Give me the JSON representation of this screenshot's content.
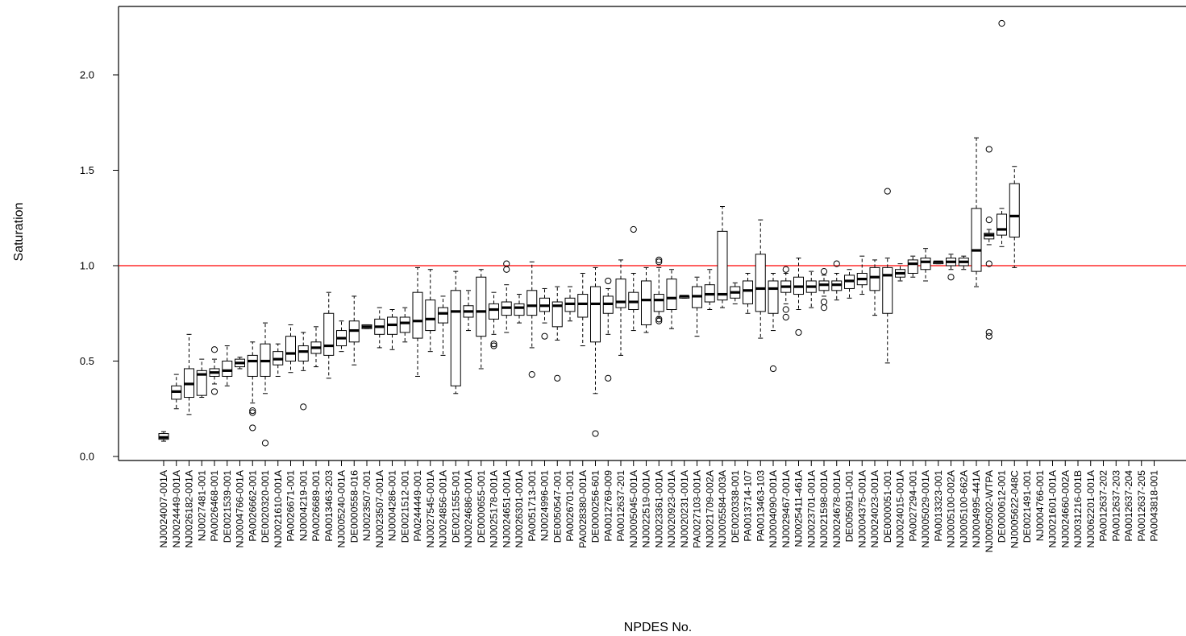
{
  "chart_data": {
    "type": "boxplot",
    "title": "",
    "xlabel": "NPDES No.",
    "ylabel": "Saturation",
    "ylim": [
      0,
      2.3
    ],
    "yticks": [
      0.0,
      0.5,
      1.0,
      1.5,
      2.0
    ],
    "ytick_labels": [
      "0.0",
      "0.5",
      "1.0",
      "1.5",
      "2.0"
    ],
    "reference_line": {
      "y": 1.0,
      "color": "#ff0000"
    },
    "box_color": "#000000",
    "categories": [
      "NJ0024007-001A",
      "NJ0024449-001A",
      "NJ0026182-001A",
      "NJ0027481-001",
      "PA0026468-001",
      "DE0021539-001",
      "NJ0004766-001A",
      "PA0026662-001",
      "DE0020320-001",
      "NJ0021610-001A",
      "PA0026671-001",
      "NJ0004219-001",
      "PA0026689-001",
      "PA0013463-203",
      "NJ0005240-001A",
      "DE0000558-016",
      "NJ0023507-001",
      "NJ0023507-001A",
      "NJ0004286-001",
      "DE0021512-001",
      "PA0244449-001",
      "NJ0027545-001A",
      "NJ0024856-001A",
      "DE0021555-001",
      "NJ0024686-001A",
      "DE0000655-001",
      "NJ0025178-001A",
      "NJ0024651-001A",
      "NJ0026301-001A",
      "PA0051713-001",
      "NJ0024996-001",
      "DE0050547-001",
      "PA0026701-001",
      "PA0028380-001A",
      "DE0000256-601",
      "PA0012769-009",
      "PA0012637-201",
      "NJ0005045-001A",
      "NJ0022519-001A",
      "NJ0023361-001A",
      "NJ0020923-001A",
      "NJ0020231-001A",
      "PA0027103-001A",
      "NJ0021709-002A",
      "NJ0005584-003A",
      "DE0020338-001",
      "PA0013714-107",
      "PA0013463-103",
      "NJ0004090-001A",
      "NJ0029467-001A",
      "NJ0025411-461A",
      "NJ0023701-001A",
      "NJ0021598-001A",
      "NJ0024678-001A",
      "DE0050911-001",
      "NJ0004375-001A",
      "NJ0024023-001A",
      "DE0000051-001",
      "NJ0024015-001A",
      "PA0027294-001",
      "NJ0005029-001A",
      "PA0013323-001",
      "NJ0005100-002A",
      "NJ0005100-662A",
      "NJ0004995-441A",
      "NJ0005002-WTPA",
      "DE0000612-001",
      "NJ0005622-048C",
      "DE0021491-001",
      "NJ0004766-001",
      "NJ0021601-001A",
      "NJ0024660-002A",
      "NJ0031216-001B",
      "NJ0062201-001A",
      "PA0012637-202",
      "PA0012637-203",
      "PA0012637-204",
      "PA0012637-205",
      "PA0043818-001"
    ],
    "boxes": [
      {
        "q1": 0.09,
        "median": 0.1,
        "q3": 0.12,
        "whisker_low": 0.08,
        "whisker_high": 0.13,
        "outliers": []
      },
      {
        "q1": 0.3,
        "median": 0.34,
        "q3": 0.37,
        "whisker_low": 0.25,
        "whisker_high": 0.43,
        "outliers": []
      },
      {
        "q1": 0.31,
        "median": 0.38,
        "q3": 0.46,
        "whisker_low": 0.22,
        "whisker_high": 0.64,
        "outliers": []
      },
      {
        "q1": 0.32,
        "median": 0.43,
        "q3": 0.45,
        "whisker_low": 0.31,
        "whisker_high": 0.51,
        "outliers": []
      },
      {
        "q1": 0.42,
        "median": 0.44,
        "q3": 0.46,
        "whisker_low": 0.38,
        "whisker_high": 0.51,
        "outliers": [
          0.34,
          0.56
        ]
      },
      {
        "q1": 0.42,
        "median": 0.45,
        "q3": 0.5,
        "whisker_low": 0.37,
        "whisker_high": 0.58,
        "outliers": []
      },
      {
        "q1": 0.47,
        "median": 0.49,
        "q3": 0.51,
        "whisker_low": 0.46,
        "whisker_high": 0.52,
        "outliers": []
      },
      {
        "q1": 0.42,
        "median": 0.5,
        "q3": 0.53,
        "whisker_low": 0.28,
        "whisker_high": 0.6,
        "outliers": [
          0.15,
          0.23,
          0.24
        ]
      },
      {
        "q1": 0.42,
        "median": 0.5,
        "q3": 0.59,
        "whisker_low": 0.33,
        "whisker_high": 0.7,
        "outliers": [
          0.07
        ]
      },
      {
        "q1": 0.48,
        "median": 0.51,
        "q3": 0.55,
        "whisker_low": 0.42,
        "whisker_high": 0.59,
        "outliers": []
      },
      {
        "q1": 0.5,
        "median": 0.54,
        "q3": 0.63,
        "whisker_low": 0.44,
        "whisker_high": 0.69,
        "outliers": []
      },
      {
        "q1": 0.5,
        "median": 0.55,
        "q3": 0.58,
        "whisker_low": 0.45,
        "whisker_high": 0.65,
        "outliers": [
          0.26
        ]
      },
      {
        "q1": 0.54,
        "median": 0.57,
        "q3": 0.6,
        "whisker_low": 0.47,
        "whisker_high": 0.68,
        "outliers": []
      },
      {
        "q1": 0.53,
        "median": 0.58,
        "q3": 0.75,
        "whisker_low": 0.41,
        "whisker_high": 0.86,
        "outliers": []
      },
      {
        "q1": 0.58,
        "median": 0.62,
        "q3": 0.66,
        "whisker_low": 0.55,
        "whisker_high": 0.71,
        "outliers": []
      },
      {
        "q1": 0.6,
        "median": 0.66,
        "q3": 0.71,
        "whisker_low": 0.48,
        "whisker_high": 0.84,
        "outliers": []
      },
      {
        "q1": 0.67,
        "median": 0.68,
        "q3": 0.69,
        "whisker_low": 0.67,
        "whisker_high": 0.69,
        "outliers": []
      },
      {
        "q1": 0.64,
        "median": 0.68,
        "q3": 0.72,
        "whisker_low": 0.57,
        "whisker_high": 0.78,
        "outliers": []
      },
      {
        "q1": 0.64,
        "median": 0.69,
        "q3": 0.73,
        "whisker_low": 0.56,
        "whisker_high": 0.77,
        "outliers": []
      },
      {
        "q1": 0.65,
        "median": 0.7,
        "q3": 0.73,
        "whisker_low": 0.6,
        "whisker_high": 0.78,
        "outliers": []
      },
      {
        "q1": 0.62,
        "median": 0.71,
        "q3": 0.86,
        "whisker_low": 0.42,
        "whisker_high": 0.99,
        "outliers": []
      },
      {
        "q1": 0.66,
        "median": 0.72,
        "q3": 0.82,
        "whisker_low": 0.55,
        "whisker_high": 0.98,
        "outliers": []
      },
      {
        "q1": 0.7,
        "median": 0.75,
        "q3": 0.78,
        "whisker_low": 0.53,
        "whisker_high": 0.84,
        "outliers": []
      },
      {
        "q1": 0.37,
        "median": 0.76,
        "q3": 0.87,
        "whisker_low": 0.33,
        "whisker_high": 0.97,
        "outliers": []
      },
      {
        "q1": 0.73,
        "median": 0.76,
        "q3": 0.79,
        "whisker_low": 0.66,
        "whisker_high": 0.87,
        "outliers": []
      },
      {
        "q1": 0.63,
        "median": 0.76,
        "q3": 0.94,
        "whisker_low": 0.46,
        "whisker_high": 0.98,
        "outliers": []
      },
      {
        "q1": 0.72,
        "median": 0.77,
        "q3": 0.8,
        "whisker_low": 0.64,
        "whisker_high": 0.86,
        "outliers": [
          0.58,
          0.59
        ]
      },
      {
        "q1": 0.74,
        "median": 0.78,
        "q3": 0.81,
        "whisker_low": 0.65,
        "whisker_high": 0.9,
        "outliers": [
          0.98,
          1.01
        ]
      },
      {
        "q1": 0.74,
        "median": 0.78,
        "q3": 0.8,
        "whisker_low": 0.7,
        "whisker_high": 0.85,
        "outliers": []
      },
      {
        "q1": 0.74,
        "median": 0.79,
        "q3": 0.87,
        "whisker_low": 0.57,
        "whisker_high": 1.02,
        "outliers": [
          0.43
        ]
      },
      {
        "q1": 0.76,
        "median": 0.79,
        "q3": 0.83,
        "whisker_low": 0.7,
        "whisker_high": 0.88,
        "outliers": [
          0.63
        ]
      },
      {
        "q1": 0.68,
        "median": 0.79,
        "q3": 0.81,
        "whisker_low": 0.61,
        "whisker_high": 0.89,
        "outliers": [
          0.41
        ]
      },
      {
        "q1": 0.76,
        "median": 0.8,
        "q3": 0.83,
        "whisker_low": 0.71,
        "whisker_high": 0.89,
        "outliers": []
      },
      {
        "q1": 0.73,
        "median": 0.8,
        "q3": 0.85,
        "whisker_low": 0.58,
        "whisker_high": 0.96,
        "outliers": []
      },
      {
        "q1": 0.6,
        "median": 0.8,
        "q3": 0.89,
        "whisker_low": 0.33,
        "whisker_high": 0.99,
        "outliers": [
          0.12
        ]
      },
      {
        "q1": 0.75,
        "median": 0.8,
        "q3": 0.84,
        "whisker_low": 0.64,
        "whisker_high": 0.88,
        "outliers": [
          0.41,
          0.92
        ]
      },
      {
        "q1": 0.78,
        "median": 0.81,
        "q3": 0.93,
        "whisker_low": 0.53,
        "whisker_high": 1.03,
        "outliers": []
      },
      {
        "q1": 0.77,
        "median": 0.81,
        "q3": 0.86,
        "whisker_low": 0.66,
        "whisker_high": 0.96,
        "outliers": [
          1.19
        ]
      },
      {
        "q1": 0.69,
        "median": 0.82,
        "q3": 0.92,
        "whisker_low": 0.65,
        "whisker_high": 0.99,
        "outliers": []
      },
      {
        "q1": 0.76,
        "median": 0.82,
        "q3": 0.85,
        "whisker_low": 0.73,
        "whisker_high": 0.99,
        "outliers": [
          0.71,
          0.72,
          1.02,
          1.03
        ]
      },
      {
        "q1": 0.77,
        "median": 0.83,
        "q3": 0.93,
        "whisker_low": 0.67,
        "whisker_high": 0.98,
        "outliers": []
      },
      {
        "q1": 0.83,
        "median": 0.84,
        "q3": 0.84,
        "whisker_low": 0.83,
        "whisker_high": 0.84,
        "outliers": []
      },
      {
        "q1": 0.78,
        "median": 0.84,
        "q3": 0.89,
        "whisker_low": 0.63,
        "whisker_high": 0.94,
        "outliers": []
      },
      {
        "q1": 0.81,
        "median": 0.85,
        "q3": 0.9,
        "whisker_low": 0.77,
        "whisker_high": 0.98,
        "outliers": []
      },
      {
        "q1": 0.82,
        "median": 0.85,
        "q3": 1.18,
        "whisker_low": 0.78,
        "whisker_high": 1.31,
        "outliers": []
      },
      {
        "q1": 0.83,
        "median": 0.86,
        "q3": 0.89,
        "whisker_low": 0.8,
        "whisker_high": 0.91,
        "outliers": []
      },
      {
        "q1": 0.8,
        "median": 0.87,
        "q3": 0.92,
        "whisker_low": 0.75,
        "whisker_high": 0.96,
        "outliers": []
      },
      {
        "q1": 0.76,
        "median": 0.88,
        "q3": 1.06,
        "whisker_low": 0.62,
        "whisker_high": 1.24,
        "outliers": []
      },
      {
        "q1": 0.75,
        "median": 0.88,
        "q3": 0.92,
        "whisker_low": 0.66,
        "whisker_high": 0.96,
        "outliers": [
          0.46
        ]
      },
      {
        "q1": 0.86,
        "median": 0.89,
        "q3": 0.92,
        "whisker_low": 0.8,
        "whisker_high": 0.96,
        "outliers": [
          0.73,
          0.77,
          0.98
        ]
      },
      {
        "q1": 0.85,
        "median": 0.89,
        "q3": 0.94,
        "whisker_low": 0.77,
        "whisker_high": 1.04,
        "outliers": [
          0.65
        ]
      },
      {
        "q1": 0.86,
        "median": 0.89,
        "q3": 0.92,
        "whisker_low": 0.78,
        "whisker_high": 0.97,
        "outliers": []
      },
      {
        "q1": 0.87,
        "median": 0.9,
        "q3": 0.92,
        "whisker_low": 0.84,
        "whisker_high": 0.95,
        "outliers": [
          0.78,
          0.81,
          0.97
        ]
      },
      {
        "q1": 0.87,
        "median": 0.9,
        "q3": 0.92,
        "whisker_low": 0.82,
        "whisker_high": 0.96,
        "outliers": [
          1.01
        ]
      },
      {
        "q1": 0.88,
        "median": 0.92,
        "q3": 0.95,
        "whisker_low": 0.83,
        "whisker_high": 0.98,
        "outliers": []
      },
      {
        "q1": 0.9,
        "median": 0.93,
        "q3": 0.96,
        "whisker_low": 0.85,
        "whisker_high": 1.05,
        "outliers": []
      },
      {
        "q1": 0.87,
        "median": 0.94,
        "q3": 0.99,
        "whisker_low": 0.74,
        "whisker_high": 1.03,
        "outliers": []
      },
      {
        "q1": 0.75,
        "median": 0.95,
        "q3": 0.99,
        "whisker_low": 0.49,
        "whisker_high": 1.04,
        "outliers": [
          1.39
        ]
      },
      {
        "q1": 0.94,
        "median": 0.96,
        "q3": 0.98,
        "whisker_low": 0.92,
        "whisker_high": 1.01,
        "outliers": []
      },
      {
        "q1": 0.96,
        "median": 1.01,
        "q3": 1.03,
        "whisker_low": 0.94,
        "whisker_high": 1.05,
        "outliers": []
      },
      {
        "q1": 0.98,
        "median": 1.02,
        "q3": 1.04,
        "whisker_low": 0.92,
        "whisker_high": 1.09,
        "outliers": []
      },
      {
        "q1": 1.01,
        "median": 1.02,
        "q3": 1.02,
        "whisker_low": 1.01,
        "whisker_high": 1.02,
        "outliers": []
      },
      {
        "q1": 1.0,
        "median": 1.02,
        "q3": 1.04,
        "whisker_low": 0.98,
        "whisker_high": 1.06,
        "outliers": [
          0.94
        ]
      },
      {
        "q1": 1.0,
        "median": 1.02,
        "q3": 1.04,
        "whisker_low": 0.98,
        "whisker_high": 1.05,
        "outliers": []
      },
      {
        "q1": 0.97,
        "median": 1.08,
        "q3": 1.3,
        "whisker_low": 0.89,
        "whisker_high": 1.67,
        "outliers": []
      },
      {
        "q1": 1.14,
        "median": 1.16,
        "q3": 1.17,
        "whisker_low": 1.11,
        "whisker_high": 1.19,
        "outliers": [
          0.63,
          0.65,
          1.01,
          1.24,
          1.61
        ]
      },
      {
        "q1": 1.16,
        "median": 1.19,
        "q3": 1.27,
        "whisker_low": 1.1,
        "whisker_high": 1.3,
        "outliers": [
          2.27
        ]
      },
      {
        "q1": 1.15,
        "median": 1.26,
        "q3": 1.43,
        "whisker_low": 0.99,
        "whisker_high": 1.52,
        "outliers": []
      },
      null,
      null,
      null,
      null,
      null,
      null,
      null,
      null,
      null,
      null,
      null
    ]
  }
}
